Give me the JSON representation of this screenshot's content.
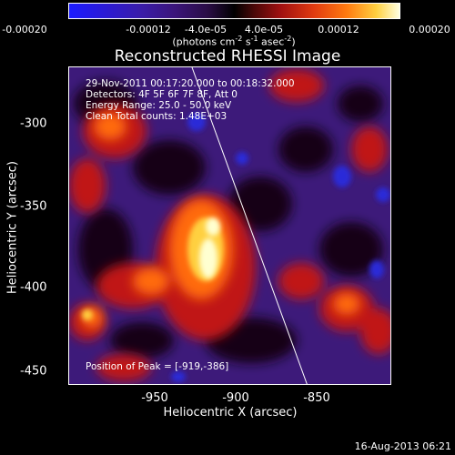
{
  "colorbar": {
    "ticks": [
      "-0.00020",
      "-0.00012",
      "-4.0e-05",
      "4.0e-05",
      "0.00012",
      "0.00020"
    ],
    "units_text": "(photons cm",
    "units_sup1": "-2",
    "units_mid": " s",
    "units_sup2": "-1",
    "units_mid2": " asec",
    "units_sup3": "-2",
    "units_end": ")",
    "colors": {
      "neg_max": "#1b1bff",
      "zero": "#000000",
      "pos_max": "#ffffe0"
    }
  },
  "title": "Reconstructed RHESSI Image",
  "plot": {
    "info_lines": [
      "29-Nov-2011 00:17:20.000 to 00:18:32.000",
      "Detectors: 4F 5F 6F 7F 8F, Att 0",
      "Energy Range: 25.0 - 50.0 keV",
      "Clean     Total counts: 1.48E+03"
    ],
    "peak_label": "Position of Peak = [-919,-386]"
  },
  "axes": {
    "x_label": "Heliocentric X (arcsec)",
    "y_label": "Heliocentric Y (arcsec)",
    "x_ticks": [
      "-950",
      "-900",
      "-850"
    ],
    "y_ticks": [
      "-300",
      "-350",
      "-400",
      "-450"
    ]
  },
  "timestamp": "16-Aug-2013 06:21"
}
